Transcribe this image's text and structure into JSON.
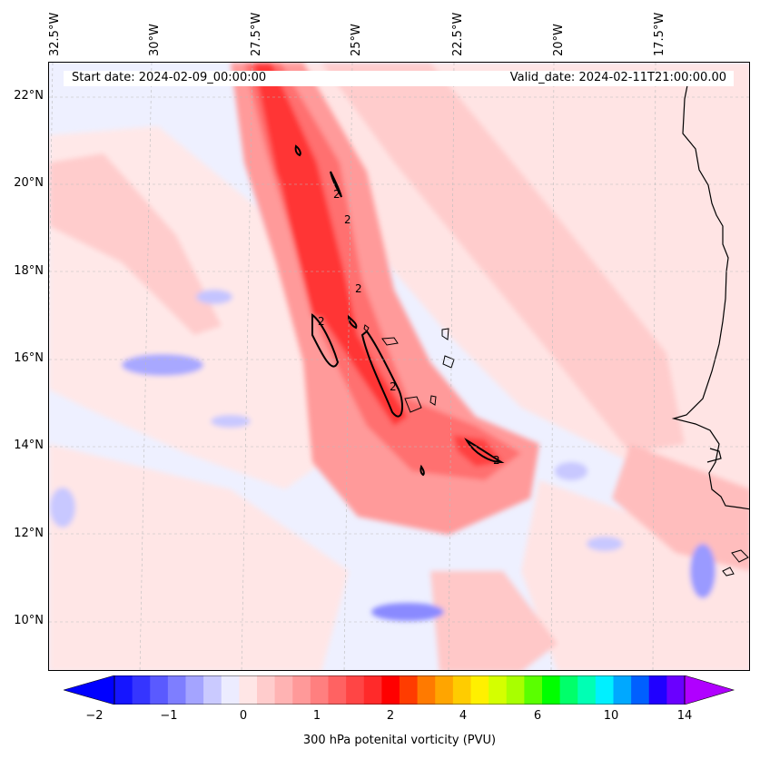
{
  "map": {
    "start_date": "Start date: 2024-02-09_00:00:00",
    "valid_date": "Valid_date: 2024-02-11T21:00:00.00",
    "longitude_labels": [
      "32.5°W",
      "30°W",
      "27.5°W",
      "25°W",
      "22.5°W",
      "20°W",
      "17.5°W"
    ],
    "latitude_labels": [
      "22°N",
      "20°N",
      "18°N",
      "16°N",
      "14°N",
      "12°N",
      "10°N"
    ],
    "contour_label": "2",
    "extent": {
      "lon_min": -32.6,
      "lon_max": -15.3,
      "lat_min": 8.9,
      "lat_max": 22.8
    },
    "colors": {
      "background": "#eef0ff",
      "coast": "#000000",
      "gridline": "#bbbbbb"
    }
  },
  "colorbar": {
    "label": "300 hPa potenital vorticity (PVU)",
    "ticks": [
      "−2",
      "−1",
      "0",
      "1",
      "2",
      "4",
      "6",
      "10",
      "14"
    ],
    "colors": [
      "#1515ff",
      "#3535ff",
      "#5a5aff",
      "#7e7eff",
      "#a4a4ff",
      "#cacaff",
      "#ececff",
      "#ffe6e6",
      "#ffcccc",
      "#ffb3b3",
      "#ff9999",
      "#ff7f7f",
      "#ff6262",
      "#ff4545",
      "#ff2a2a",
      "#ff0000",
      "#ff3c00",
      "#ff7a00",
      "#ffa500",
      "#ffcc00",
      "#fff000",
      "#d4ff00",
      "#a8ff00",
      "#5aff00",
      "#00ff00",
      "#00ff6a",
      "#00ffb4",
      "#00f0ff",
      "#00a8ff",
      "#0060ff",
      "#2000ff",
      "#6a00ff"
    ],
    "extend_min_color": "#0000ff",
    "extend_max_color": "#b000ff"
  }
}
